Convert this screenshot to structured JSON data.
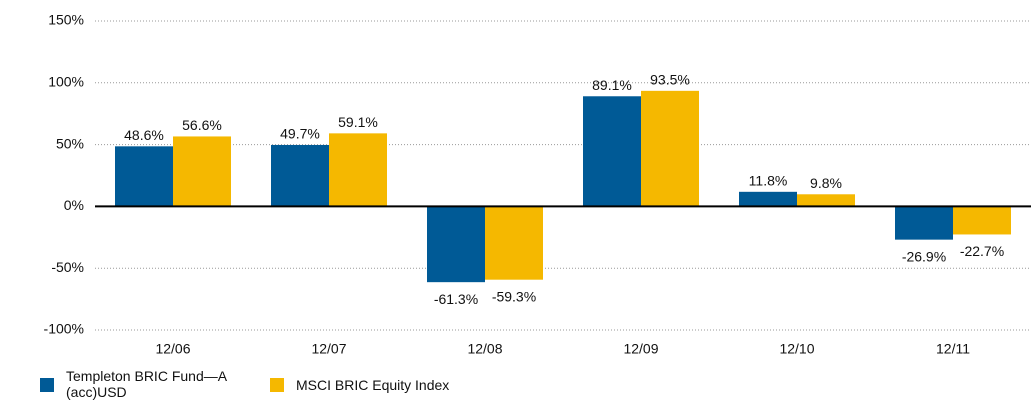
{
  "chart_data": {
    "type": "bar",
    "categories": [
      "12/06",
      "12/07",
      "12/08",
      "12/09",
      "12/10",
      "12/11"
    ],
    "series": [
      {
        "name": "Templeton BRIC Fund—A (acc)USD",
        "color": "#005a96",
        "values": [
          48.6,
          49.7,
          -61.3,
          89.1,
          11.8,
          -26.9
        ],
        "value_labels": [
          "48.6%",
          "49.7%",
          "-61.3%",
          "89.1%",
          "11.8%",
          "-26.9%"
        ]
      },
      {
        "name": "MSCI BRIC Equity Index",
        "color": "#f5b800",
        "values": [
          56.6,
          59.1,
          -59.3,
          93.5,
          9.8,
          -22.7
        ],
        "value_labels": [
          "56.6%",
          "59.1%",
          "-59.3%",
          "93.5%",
          "9.8%",
          "-22.7%"
        ]
      }
    ],
    "ylim": [
      -100,
      150
    ],
    "yticks": [
      {
        "value": -100,
        "label": "-100%"
      },
      {
        "value": -50,
        "label": "-50%"
      },
      {
        "value": 0,
        "label": "0%"
      },
      {
        "value": 50,
        "label": "50%"
      },
      {
        "value": 100,
        "label": "100%"
      },
      {
        "value": 150,
        "label": "150%"
      }
    ],
    "grid": true
  }
}
